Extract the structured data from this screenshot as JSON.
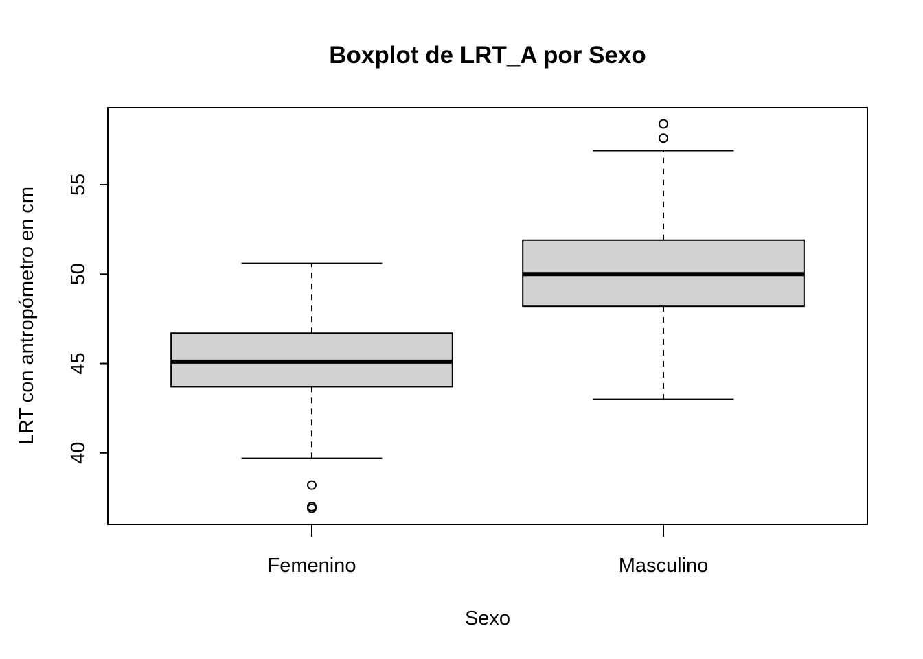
{
  "chart_data": {
    "type": "boxplot",
    "title": "Boxplot de LRT_A por Sexo",
    "xlabel": "Sexo",
    "ylabel": "LRT con antropómetro en cm",
    "ylim": [
      36.0,
      59.3
    ],
    "yticks": [
      40,
      45,
      50,
      55
    ],
    "grid": false,
    "box_fill": "#d3d3d3",
    "categories": [
      "Femenino",
      "Masculino"
    ],
    "boxes": [
      {
        "category": "Femenino",
        "whisker_low": 39.7,
        "q1": 43.7,
        "median": 45.1,
        "q3": 46.7,
        "whisker_high": 50.6,
        "outliers": [
          38.2,
          37.0,
          36.9
        ]
      },
      {
        "category": "Masculino",
        "whisker_low": 43.0,
        "q1": 48.2,
        "median": 50.0,
        "q3": 51.9,
        "whisker_high": 56.9,
        "outliers": [
          57.6,
          58.4
        ]
      }
    ]
  }
}
